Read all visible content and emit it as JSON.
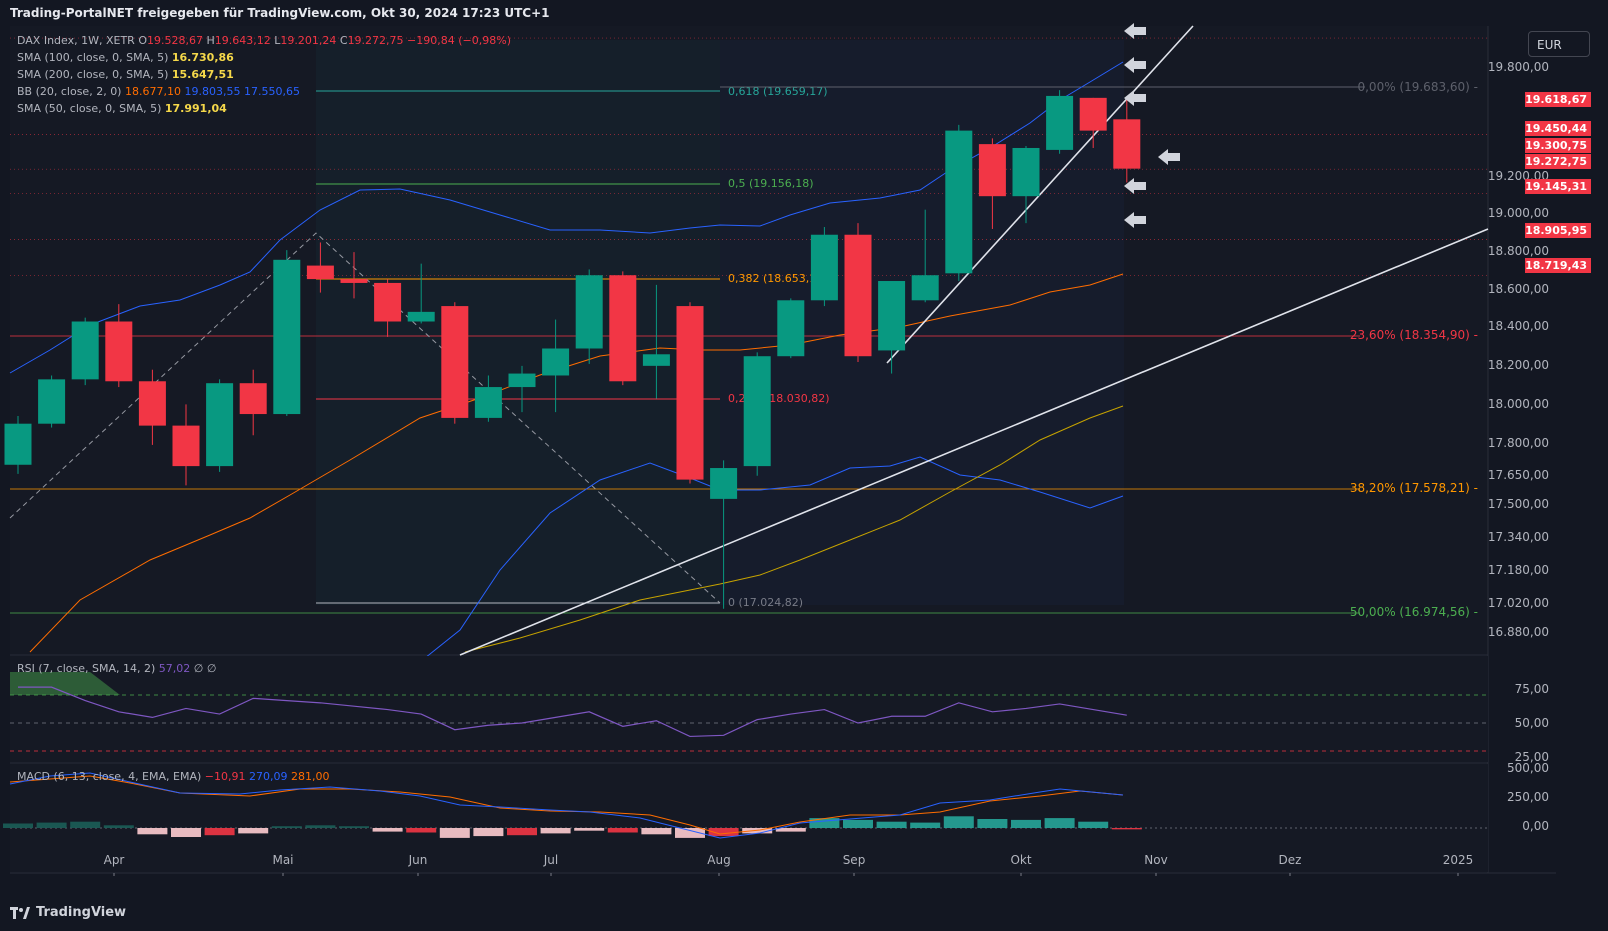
{
  "header": "Trading-PortalNET freigegeben für TradingView.com, Okt 30, 2024 17:23 UTC+1",
  "currency": "EUR",
  "footer_brand": "TradingView",
  "colors": {
    "up": "#089981",
    "down": "#f23645",
    "bg": "#131722",
    "grid": "#2a2e39",
    "bb_upper": "#2962ff",
    "bb_lower": "#2962ff",
    "bb_basis": "#ff6d00",
    "sma50": "#c6a300",
    "sma100": "#f5d84a",
    "rsi": "#7e57c2",
    "macd": "#2962ff",
    "signal": "#ff6d00"
  },
  "legend": [
    {
      "name": "DAX Index, 1W, XETR",
      "values": [
        {
          "t": "O",
          "v": "19.528,67",
          "c": "#f23645"
        },
        {
          "t": "H",
          "v": "19.643,12",
          "c": "#f23645"
        },
        {
          "t": "L",
          "v": "19.201,24",
          "c": "#f23645"
        },
        {
          "t": "C",
          "v": "19.272,75",
          "c": "#f23645"
        },
        {
          "t": "",
          "v": "−190,84 (−0,98%)",
          "c": "#f23645"
        }
      ]
    },
    {
      "name": "SMA (100, close, 0, SMA, 5)",
      "values": [
        {
          "t": "",
          "v": "16.730,86",
          "c": "#f5d84a"
        }
      ]
    },
    {
      "name": "SMA (200, close, 0, SMA, 5)",
      "values": [
        {
          "t": "",
          "v": "15.647,51",
          "c": "#f5d84a"
        }
      ]
    },
    {
      "name": "BB (20, close, 2, 0)",
      "values": [
        {
          "t": "",
          "v": "18.677,10",
          "c": "#ff6d00"
        },
        {
          "t": "",
          "v": "19.803,55",
          "c": "#2962ff"
        },
        {
          "t": "",
          "v": "17.550,65",
          "c": "#2962ff"
        }
      ]
    },
    {
      "name": "SMA (50, close, 0, SMA, 5)",
      "values": [
        {
          "t": "",
          "v": "17.991,04",
          "c": "#f5d84a"
        }
      ]
    }
  ],
  "rsi_legend": {
    "name": "RSI (7, close, SMA, 14, 2)",
    "value": "57,02",
    "extra": "∅ ∅"
  },
  "macd_legend": {
    "name": "MACD (6, 13, close, 4, EMA, EMA)",
    "hist": "−10,91",
    "macd": "270,09",
    "signal": "281,00"
  },
  "chart_data": {
    "type": "candlestick",
    "symbol": "DAX Index",
    "timeframe": "1W",
    "exchange": "XETR",
    "price_axis": [
      "19.800,00",
      "19.200,00",
      "19.000,00",
      "18.800,00",
      "18.600,00",
      "18.400,00",
      "18.200,00",
      "18.000,00",
      "17.800,00",
      "17.650,00",
      "17.500,00",
      "17.340,00",
      "17.180,00",
      "17.020,00",
      "16.880,00"
    ],
    "x_axis": [
      "Apr",
      "Mai",
      "Jun",
      "Jul",
      "Aug",
      "Sep",
      "Okt",
      "Nov",
      "Dez",
      "2025"
    ],
    "candles": [
      {
        "o": 17737,
        "h": 17990,
        "l": 17690,
        "c": 17950
      },
      {
        "o": 17950,
        "h": 18200,
        "l": 17930,
        "c": 18180
      },
      {
        "o": 18180,
        "h": 18500,
        "l": 18150,
        "c": 18480
      },
      {
        "o": 18480,
        "h": 18570,
        "l": 18140,
        "c": 18170
      },
      {
        "o": 18170,
        "h": 18230,
        "l": 17840,
        "c": 17940
      },
      {
        "o": 17940,
        "h": 18050,
        "l": 17630,
        "c": 17730
      },
      {
        "o": 17730,
        "h": 18180,
        "l": 17700,
        "c": 18160
      },
      {
        "o": 18160,
        "h": 18230,
        "l": 17890,
        "c": 18000
      },
      {
        "o": 18000,
        "h": 18850,
        "l": 17990,
        "c": 18800
      },
      {
        "o": 18770,
        "h": 18890,
        "l": 18630,
        "c": 18700
      },
      {
        "o": 18700,
        "h": 18840,
        "l": 18600,
        "c": 18680
      },
      {
        "o": 18680,
        "h": 18700,
        "l": 18400,
        "c": 18480
      },
      {
        "o": 18480,
        "h": 18780,
        "l": 18470,
        "c": 18530
      },
      {
        "o": 18560,
        "h": 18580,
        "l": 17950,
        "c": 17980
      },
      {
        "o": 17980,
        "h": 18200,
        "l": 17960,
        "c": 18140
      },
      {
        "o": 18140,
        "h": 18250,
        "l": 18010,
        "c": 18210
      },
      {
        "o": 18200,
        "h": 18490,
        "l": 18010,
        "c": 18340
      },
      {
        "o": 18340,
        "h": 18750,
        "l": 18260,
        "c": 18720
      },
      {
        "o": 18720,
        "h": 18740,
        "l": 18150,
        "c": 18170
      },
      {
        "o": 18250,
        "h": 18670,
        "l": 18080,
        "c": 18310
      },
      {
        "o": 18560,
        "h": 18580,
        "l": 17640,
        "c": 17660
      },
      {
        "o": 17560,
        "h": 17760,
        "l": 16990,
        "c": 17720
      },
      {
        "o": 17730,
        "h": 18320,
        "l": 17680,
        "c": 18300
      },
      {
        "o": 18300,
        "h": 18600,
        "l": 18290,
        "c": 18590
      },
      {
        "o": 18590,
        "h": 18970,
        "l": 18560,
        "c": 18930
      },
      {
        "o": 18930,
        "h": 18990,
        "l": 18270,
        "c": 18300
      },
      {
        "o": 18330,
        "h": 18670,
        "l": 18210,
        "c": 18690
      },
      {
        "o": 18590,
        "h": 19060,
        "l": 18580,
        "c": 18720
      },
      {
        "o": 18730,
        "h": 19500,
        "l": 18690,
        "c": 19470
      },
      {
        "o": 19400,
        "h": 19430,
        "l": 18960,
        "c": 19130
      },
      {
        "o": 19130,
        "h": 19390,
        "l": 18990,
        "c": 19380
      },
      {
        "o": 19370,
        "h": 19680,
        "l": 19350,
        "c": 19650
      },
      {
        "o": 19640,
        "h": 19640,
        "l": 19380,
        "c": 19470
      },
      {
        "o": 19528.67,
        "h": 19643.12,
        "l": 19201.24,
        "c": 19272.75
      }
    ],
    "price_tags": [
      {
        "label": "19.618,67",
        "color": "#f23645"
      },
      {
        "label": "19.450,44",
        "color": "#f23645"
      },
      {
        "label": "19.300,75",
        "color": "#f23645"
      },
      {
        "label": "19.272,75",
        "color": "#f23645"
      },
      {
        "label": "19.145,31",
        "color": "#f23645"
      },
      {
        "label": "18.905,95",
        "color": "#f23645"
      },
      {
        "label": "18.719,43",
        "color": "#f23645"
      }
    ],
    "fib_left": [
      {
        "label": "0,618 (19.659,17)",
        "color": "#26a69a"
      },
      {
        "label": "0,5 (19.156,18)",
        "color": "#4caf50"
      },
      {
        "label": "0,382 (18.653,1",
        "color": "#ff9800"
      },
      {
        "label": "0,2 ",
        "color": "#f23645"
      },
      {
        "label": "(18.030,82)",
        "color": "#f23645"
      },
      {
        "label": "0 (17.024,82)",
        "color": "#787b86"
      }
    ],
    "fib_right": [
      {
        "label": "0,00% (19.683,60) -",
        "color": "#5d606b"
      },
      {
        "label": "23,60% (18.354,90) -",
        "color": "#f23645"
      },
      {
        "label": "38,20% (17.578,21) -",
        "color": "#ff9800"
      },
      {
        "label": "50,00% (16.974,56) -",
        "color": "#4caf50"
      }
    ],
    "rsi": {
      "axis": [
        "75,00",
        "50,00",
        "25,00"
      ],
      "values": [
        82,
        82,
        70,
        60,
        55,
        63,
        58,
        72,
        70,
        68,
        65,
        62,
        58,
        44,
        48,
        50,
        55,
        60,
        47,
        52,
        38,
        39,
        53,
        58,
        62,
        50,
        56,
        56,
        68,
        60,
        63,
        67,
        62,
        57
      ]
    },
    "macd": {
      "axis": [
        "500,00",
        "250,00",
        "0,00"
      ]
    }
  }
}
